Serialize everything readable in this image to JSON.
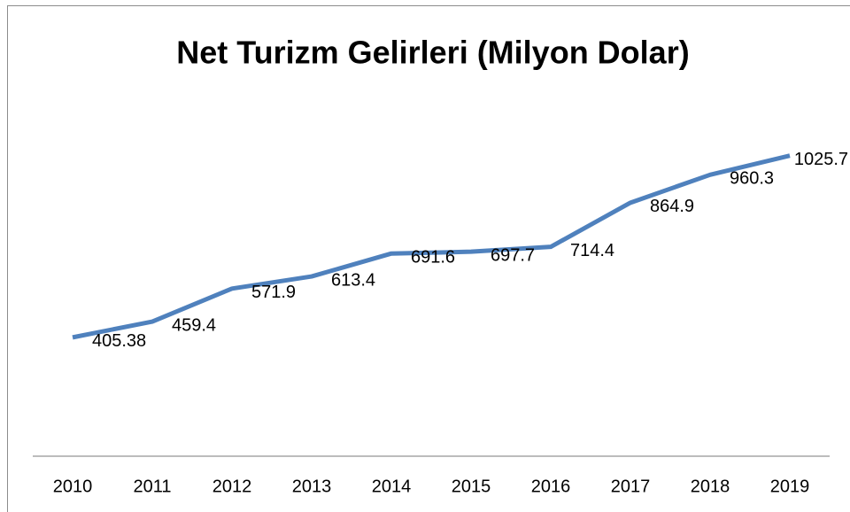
{
  "chart_data": {
    "type": "line",
    "title": "Net Turizm Gelirleri (Milyon Dolar)",
    "categories": [
      "2010",
      "2011",
      "2012",
      "2013",
      "2014",
      "2015",
      "2016",
      "2017",
      "2018",
      "2019"
    ],
    "series": [
      {
        "name": "Net Turizm Gelirleri",
        "color": "#4f81bd",
        "values": [
          405.38,
          459.4,
          571.9,
          613.4,
          691.6,
          697.7,
          714.4,
          864.9,
          960.3,
          1025.7
        ]
      }
    ],
    "ylim": [
      0,
      1200
    ]
  }
}
